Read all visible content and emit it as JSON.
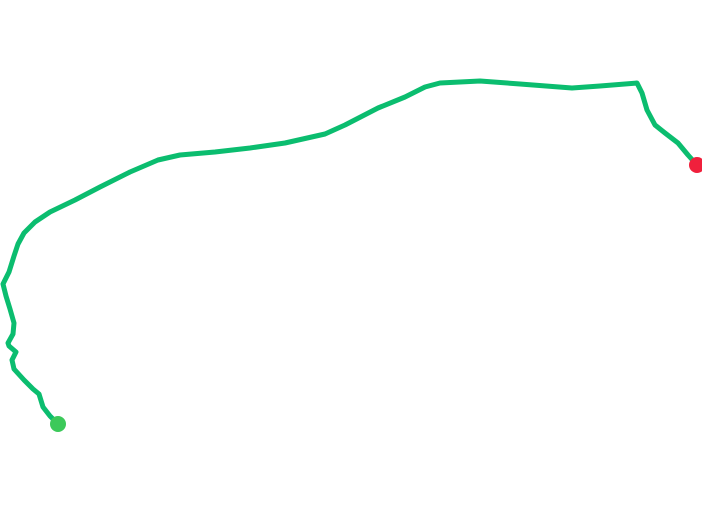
{
  "map": {
    "route_color": "#0bbd6f",
    "start_marker_color": "#3cc95a",
    "end_marker_color": "#f0203c",
    "start_marker_icon": "start-pin-icon",
    "end_marker_icon": "end-pin-icon"
  }
}
